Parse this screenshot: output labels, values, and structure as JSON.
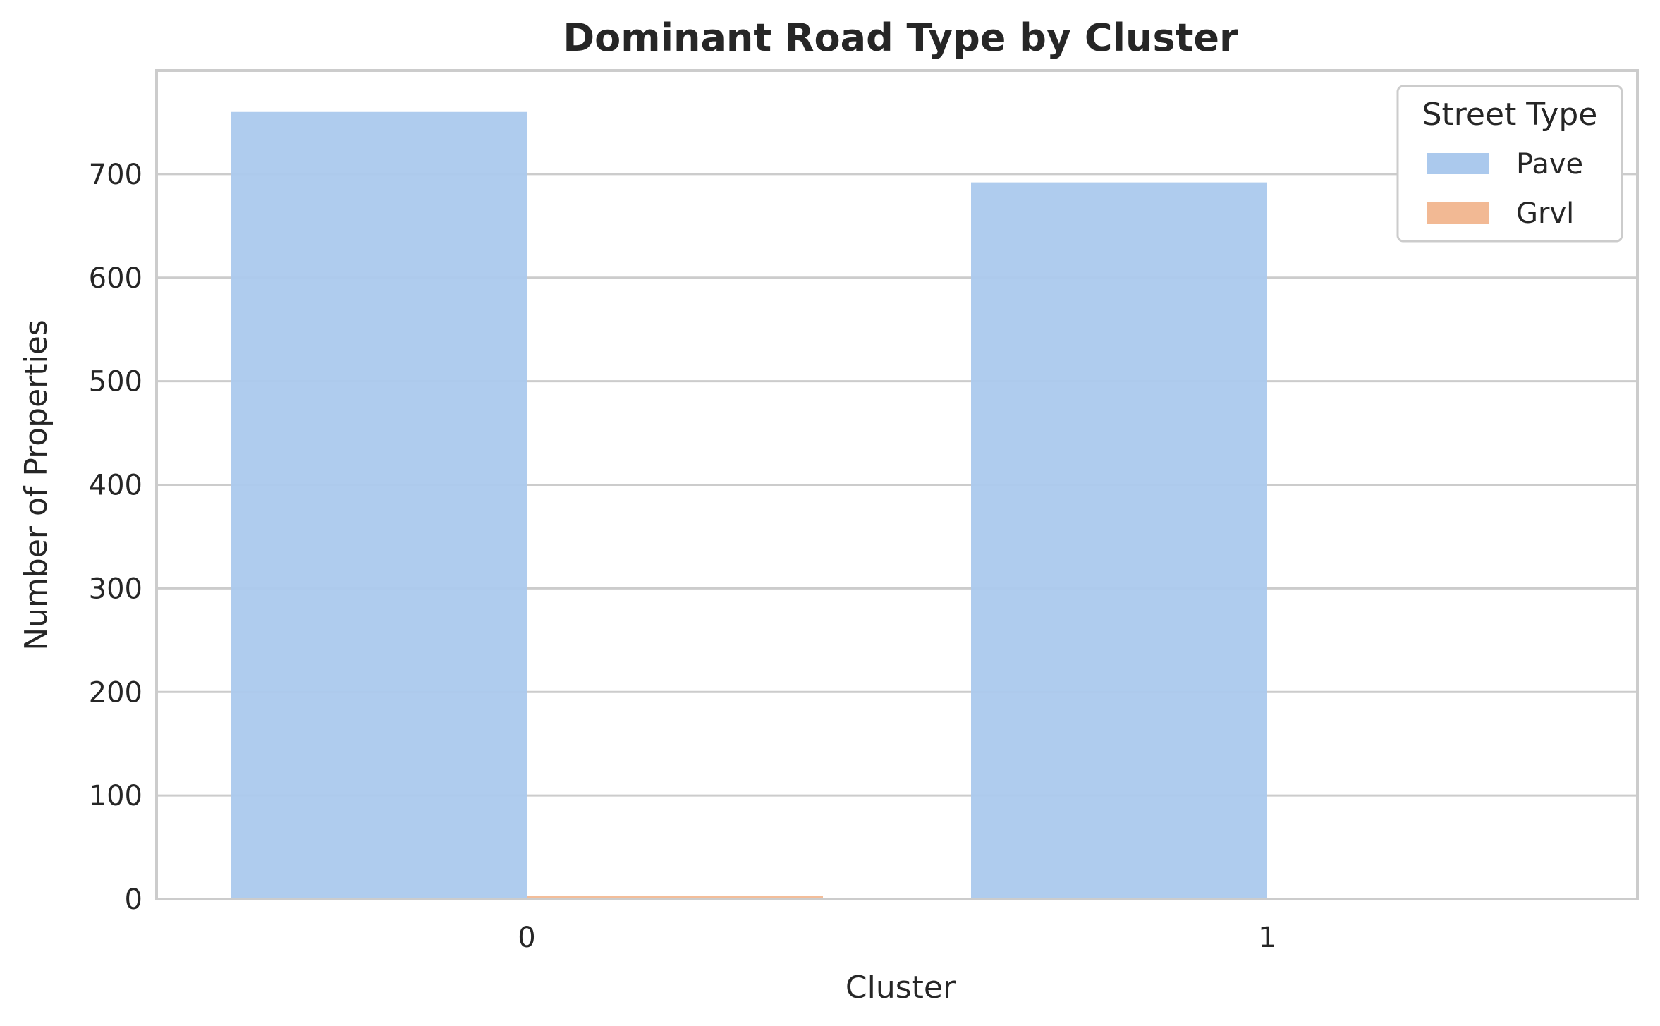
{
  "chart_data": {
    "type": "bar",
    "title": "Dominant Road Type by Cluster",
    "xlabel": "Cluster",
    "ylabel": "Number of Properties",
    "categories": [
      "0",
      "1"
    ],
    "series": [
      {
        "name": "Pave",
        "values": [
          760,
          692
        ],
        "color": "#abc9ed"
      },
      {
        "name": "Grvl",
        "values": [
          3,
          0
        ],
        "color": "#f2b994"
      }
    ],
    "ylim": [
      0,
      800
    ],
    "yticks": [
      0,
      100,
      200,
      300,
      400,
      500,
      600,
      700
    ],
    "grid": true,
    "legend": {
      "title": "Street Type",
      "placement": "top-right"
    }
  }
}
